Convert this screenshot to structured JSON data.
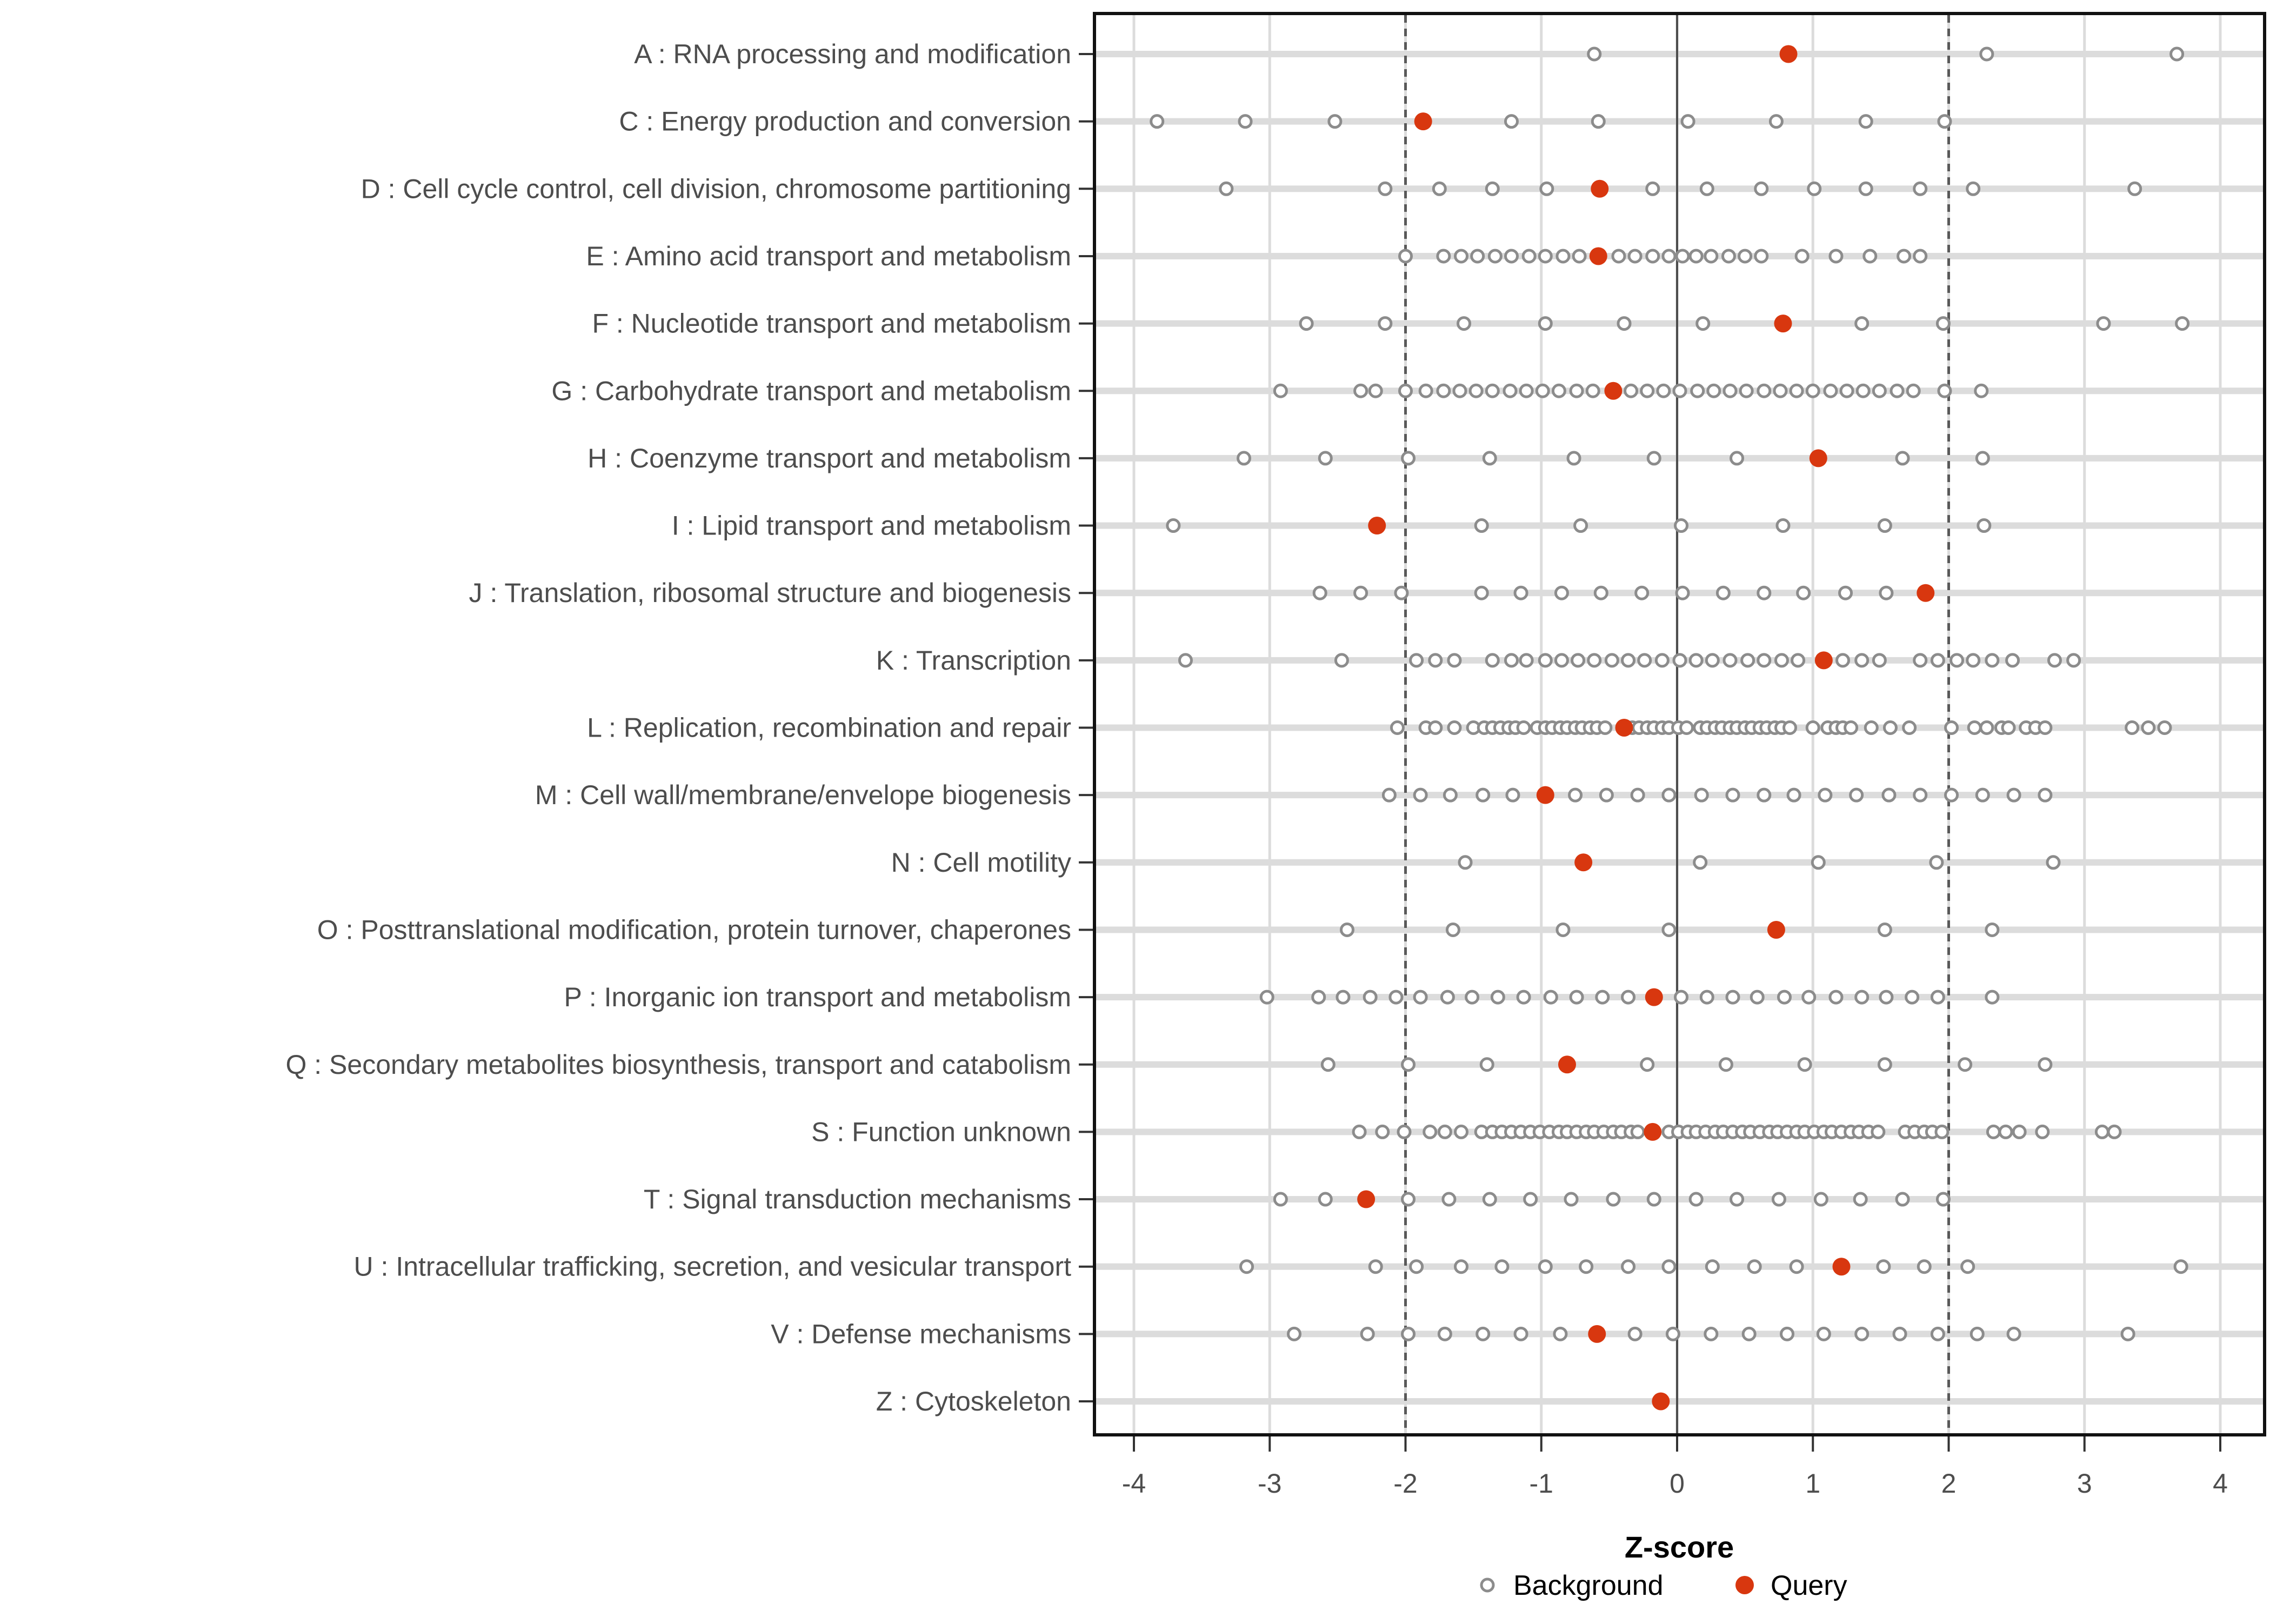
{
  "chart_data": {
    "type": "scatter",
    "title": "",
    "xlabel": "Z-score",
    "ylabel": "",
    "xlim": [
      -4.3,
      4.35
    ],
    "x_ticks": [
      -4,
      -3,
      -2,
      -1,
      0,
      1,
      2,
      3,
      4
    ],
    "grid": "on",
    "reference_lines": {
      "zero_line": 0,
      "dashed_lines": [
        -2,
        2
      ]
    },
    "legend": [
      "Background",
      "Query"
    ],
    "legend_position": "bottom",
    "categories": [
      {
        "label": "A : RNA processing and modification",
        "background": [
          -0.61,
          2.28,
          3.68
        ],
        "query": 0.82
      },
      {
        "label": "C : Energy production and conversion",
        "background": [
          -3.83,
          -3.18,
          -2.52,
          -1.22,
          -0.58,
          0.08,
          0.73,
          1.39,
          1.97
        ],
        "query": -1.87
      },
      {
        "label": "D : Cell cycle control, cell division, chromosome partitioning",
        "background": [
          -3.32,
          -2.15,
          -1.75,
          -1.36,
          -0.96,
          -0.18,
          0.22,
          0.62,
          1.01,
          1.39,
          1.79,
          2.18,
          3.37
        ],
        "query": -0.57
      },
      {
        "label": "E : Amino acid transport and metabolism",
        "background": [
          -2.0,
          -1.72,
          -1.59,
          -1.47,
          -1.34,
          -1.22,
          -1.09,
          -0.97,
          -0.84,
          -0.72,
          -0.43,
          -0.31,
          -0.18,
          -0.06,
          0.04,
          0.14,
          0.25,
          0.38,
          0.5,
          0.62,
          0.92,
          1.17,
          1.42,
          1.67,
          1.79
        ],
        "query": -0.58
      },
      {
        "label": "F : Nucleotide transport and metabolism",
        "background": [
          -2.73,
          -2.15,
          -1.57,
          -0.97,
          -0.39,
          0.19,
          1.36,
          1.96,
          3.14,
          3.72
        ],
        "query": 0.78
      },
      {
        "label": "G : Carbohydrate transport and metabolism",
        "background": [
          -2.92,
          -2.33,
          -2.22,
          -2.0,
          -1.85,
          -1.72,
          -1.6,
          -1.48,
          -1.36,
          -1.23,
          -1.11,
          -0.99,
          -0.87,
          -0.74,
          -0.62,
          -0.34,
          -0.22,
          -0.1,
          0.02,
          0.15,
          0.27,
          0.39,
          0.51,
          0.64,
          0.76,
          0.88,
          1.0,
          1.13,
          1.25,
          1.37,
          1.49,
          1.62,
          1.74,
          1.97,
          2.24
        ],
        "query": -0.47
      },
      {
        "label": "H : Coenzyme transport and metabolism",
        "background": [
          -3.19,
          -2.59,
          -1.98,
          -1.38,
          -0.76,
          -0.17,
          0.44,
          1.66,
          2.25
        ],
        "query": 1.04
      },
      {
        "label": "I : Lipid transport and metabolism",
        "background": [
          -3.71,
          -1.44,
          -0.71,
          0.03,
          0.78,
          1.53,
          2.26
        ],
        "query": -2.21
      },
      {
        "label": "J : Translation, ribosomal structure and biogenesis",
        "background": [
          -2.63,
          -2.33,
          -2.03,
          -1.44,
          -1.15,
          -0.85,
          -0.56,
          -0.26,
          0.04,
          0.34,
          0.64,
          0.93,
          1.24,
          1.54
        ],
        "query": 1.83
      },
      {
        "label": "K : Transcription",
        "background": [
          -3.62,
          -2.47,
          -1.92,
          -1.78,
          -1.64,
          -1.36,
          -1.22,
          -1.11,
          -0.97,
          -0.85,
          -0.73,
          -0.61,
          -0.48,
          -0.36,
          -0.24,
          -0.11,
          0.02,
          0.14,
          0.26,
          0.39,
          0.52,
          0.64,
          0.77,
          0.89,
          1.22,
          1.36,
          1.49,
          1.79,
          1.92,
          2.06,
          2.18,
          2.32,
          2.47,
          2.78,
          2.92
        ],
        "query": 1.08
      },
      {
        "label": "L : Replication, recombination and repair",
        "background": [
          -2.06,
          -1.85,
          -1.78,
          -1.64,
          -1.5,
          -1.42,
          -1.36,
          -1.3,
          -1.24,
          -1.19,
          -1.13,
          -1.03,
          -0.97,
          -0.92,
          -0.86,
          -0.81,
          -0.75,
          -0.7,
          -0.64,
          -0.59,
          -0.53,
          -0.33,
          -0.28,
          -0.22,
          -0.17,
          -0.11,
          -0.06,
          0.01,
          0.07,
          0.17,
          0.22,
          0.28,
          0.33,
          0.39,
          0.44,
          0.5,
          0.55,
          0.61,
          0.66,
          0.72,
          0.77,
          0.83,
          1.0,
          1.11,
          1.17,
          1.22,
          1.28,
          1.43,
          1.57,
          1.71,
          2.02,
          2.19,
          2.28,
          2.39,
          2.44,
          2.57,
          2.64,
          2.71,
          3.35,
          3.47,
          3.59
        ],
        "query": -0.39
      },
      {
        "label": "M : Cell wall/membrane/envelope biogenesis",
        "background": [
          -2.12,
          -1.89,
          -1.67,
          -1.43,
          -1.21,
          -0.75,
          -0.52,
          -0.29,
          -0.06,
          0.18,
          0.41,
          0.64,
          0.86,
          1.09,
          1.32,
          1.56,
          1.79,
          2.02,
          2.25,
          2.48,
          2.71
        ],
        "query": -0.97
      },
      {
        "label": "N : Cell motility",
        "background": [
          -1.56,
          0.17,
          1.04,
          1.91,
          2.77
        ],
        "query": -0.69
      },
      {
        "label": "O : Posttranslational modification, protein turnover, chaperones",
        "background": [
          -2.43,
          -1.65,
          -0.84,
          -0.06,
          1.53,
          2.32
        ],
        "query": 0.73
      },
      {
        "label": "P : Inorganic ion transport and metabolism",
        "background": [
          -3.02,
          -2.64,
          -2.46,
          -2.26,
          -2.07,
          -1.89,
          -1.69,
          -1.51,
          -1.32,
          -1.13,
          -0.93,
          -0.74,
          -0.55,
          -0.36,
          0.03,
          0.22,
          0.41,
          0.59,
          0.79,
          0.97,
          1.17,
          1.36,
          1.54,
          1.73,
          1.92,
          2.32
        ],
        "query": -0.17
      },
      {
        "label": "Q : Secondary metabolites biosynthesis, transport and catabolism",
        "background": [
          -2.57,
          -1.98,
          -1.4,
          -0.22,
          0.36,
          0.94,
          1.53,
          2.12,
          2.71
        ],
        "query": -0.81
      },
      {
        "label": "S : Function unknown",
        "background": [
          -2.34,
          -2.17,
          -2.01,
          -1.82,
          -1.71,
          -1.59,
          -1.44,
          -1.36,
          -1.29,
          -1.22,
          -1.15,
          -1.08,
          -1.01,
          -0.94,
          -0.87,
          -0.81,
          -0.74,
          -0.67,
          -0.61,
          -0.54,
          -0.47,
          -0.41,
          -0.34,
          -0.29,
          -0.06,
          0.01,
          0.08,
          0.14,
          0.21,
          0.28,
          0.34,
          0.41,
          0.48,
          0.54,
          0.61,
          0.68,
          0.74,
          0.81,
          0.88,
          0.94,
          1.01,
          1.08,
          1.14,
          1.21,
          1.28,
          1.34,
          1.41,
          1.48,
          1.68,
          1.75,
          1.82,
          1.88,
          1.95,
          2.33,
          2.42,
          2.52,
          2.69,
          3.13,
          3.22
        ],
        "query": -0.18
      },
      {
        "label": "T : Signal transduction mechanisms",
        "background": [
          -2.92,
          -2.59,
          -1.98,
          -1.68,
          -1.38,
          -1.08,
          -0.78,
          -0.47,
          -0.17,
          0.14,
          0.44,
          0.75,
          1.06,
          1.35,
          1.66,
          1.96
        ],
        "query": -2.29
      },
      {
        "label": "U : Intracellular trafficking, secretion, and vesicular transport",
        "background": [
          -3.17,
          -2.22,
          -1.92,
          -1.59,
          -1.29,
          -0.97,
          -0.67,
          -0.36,
          -0.06,
          0.26,
          0.57,
          0.88,
          1.52,
          1.82,
          2.14,
          3.71
        ],
        "query": 1.21
      },
      {
        "label": "V : Defense mechanisms",
        "background": [
          -2.82,
          -2.28,
          -1.98,
          -1.71,
          -1.43,
          -1.15,
          -0.86,
          -0.31,
          -0.03,
          0.25,
          0.53,
          0.81,
          1.08,
          1.36,
          1.64,
          1.92,
          2.21,
          2.48,
          3.32
        ],
        "query": -0.59
      },
      {
        "label": "Z : Cytoskeleton",
        "background": [],
        "query": -0.12
      }
    ]
  },
  "colors": {
    "query": "#D8370F",
    "background_stroke": "#8C8C8C",
    "background_fill": "#FFFFFF",
    "stripe": "#DCDCDC",
    "gridline": "#DCDCDC",
    "dashed_line": "#595959",
    "zero_line": "#4D4D4D",
    "axis_text": "#4D4D4D",
    "title_text": "#000000",
    "panel_border": "#111111",
    "tick_mark": "#333333"
  }
}
